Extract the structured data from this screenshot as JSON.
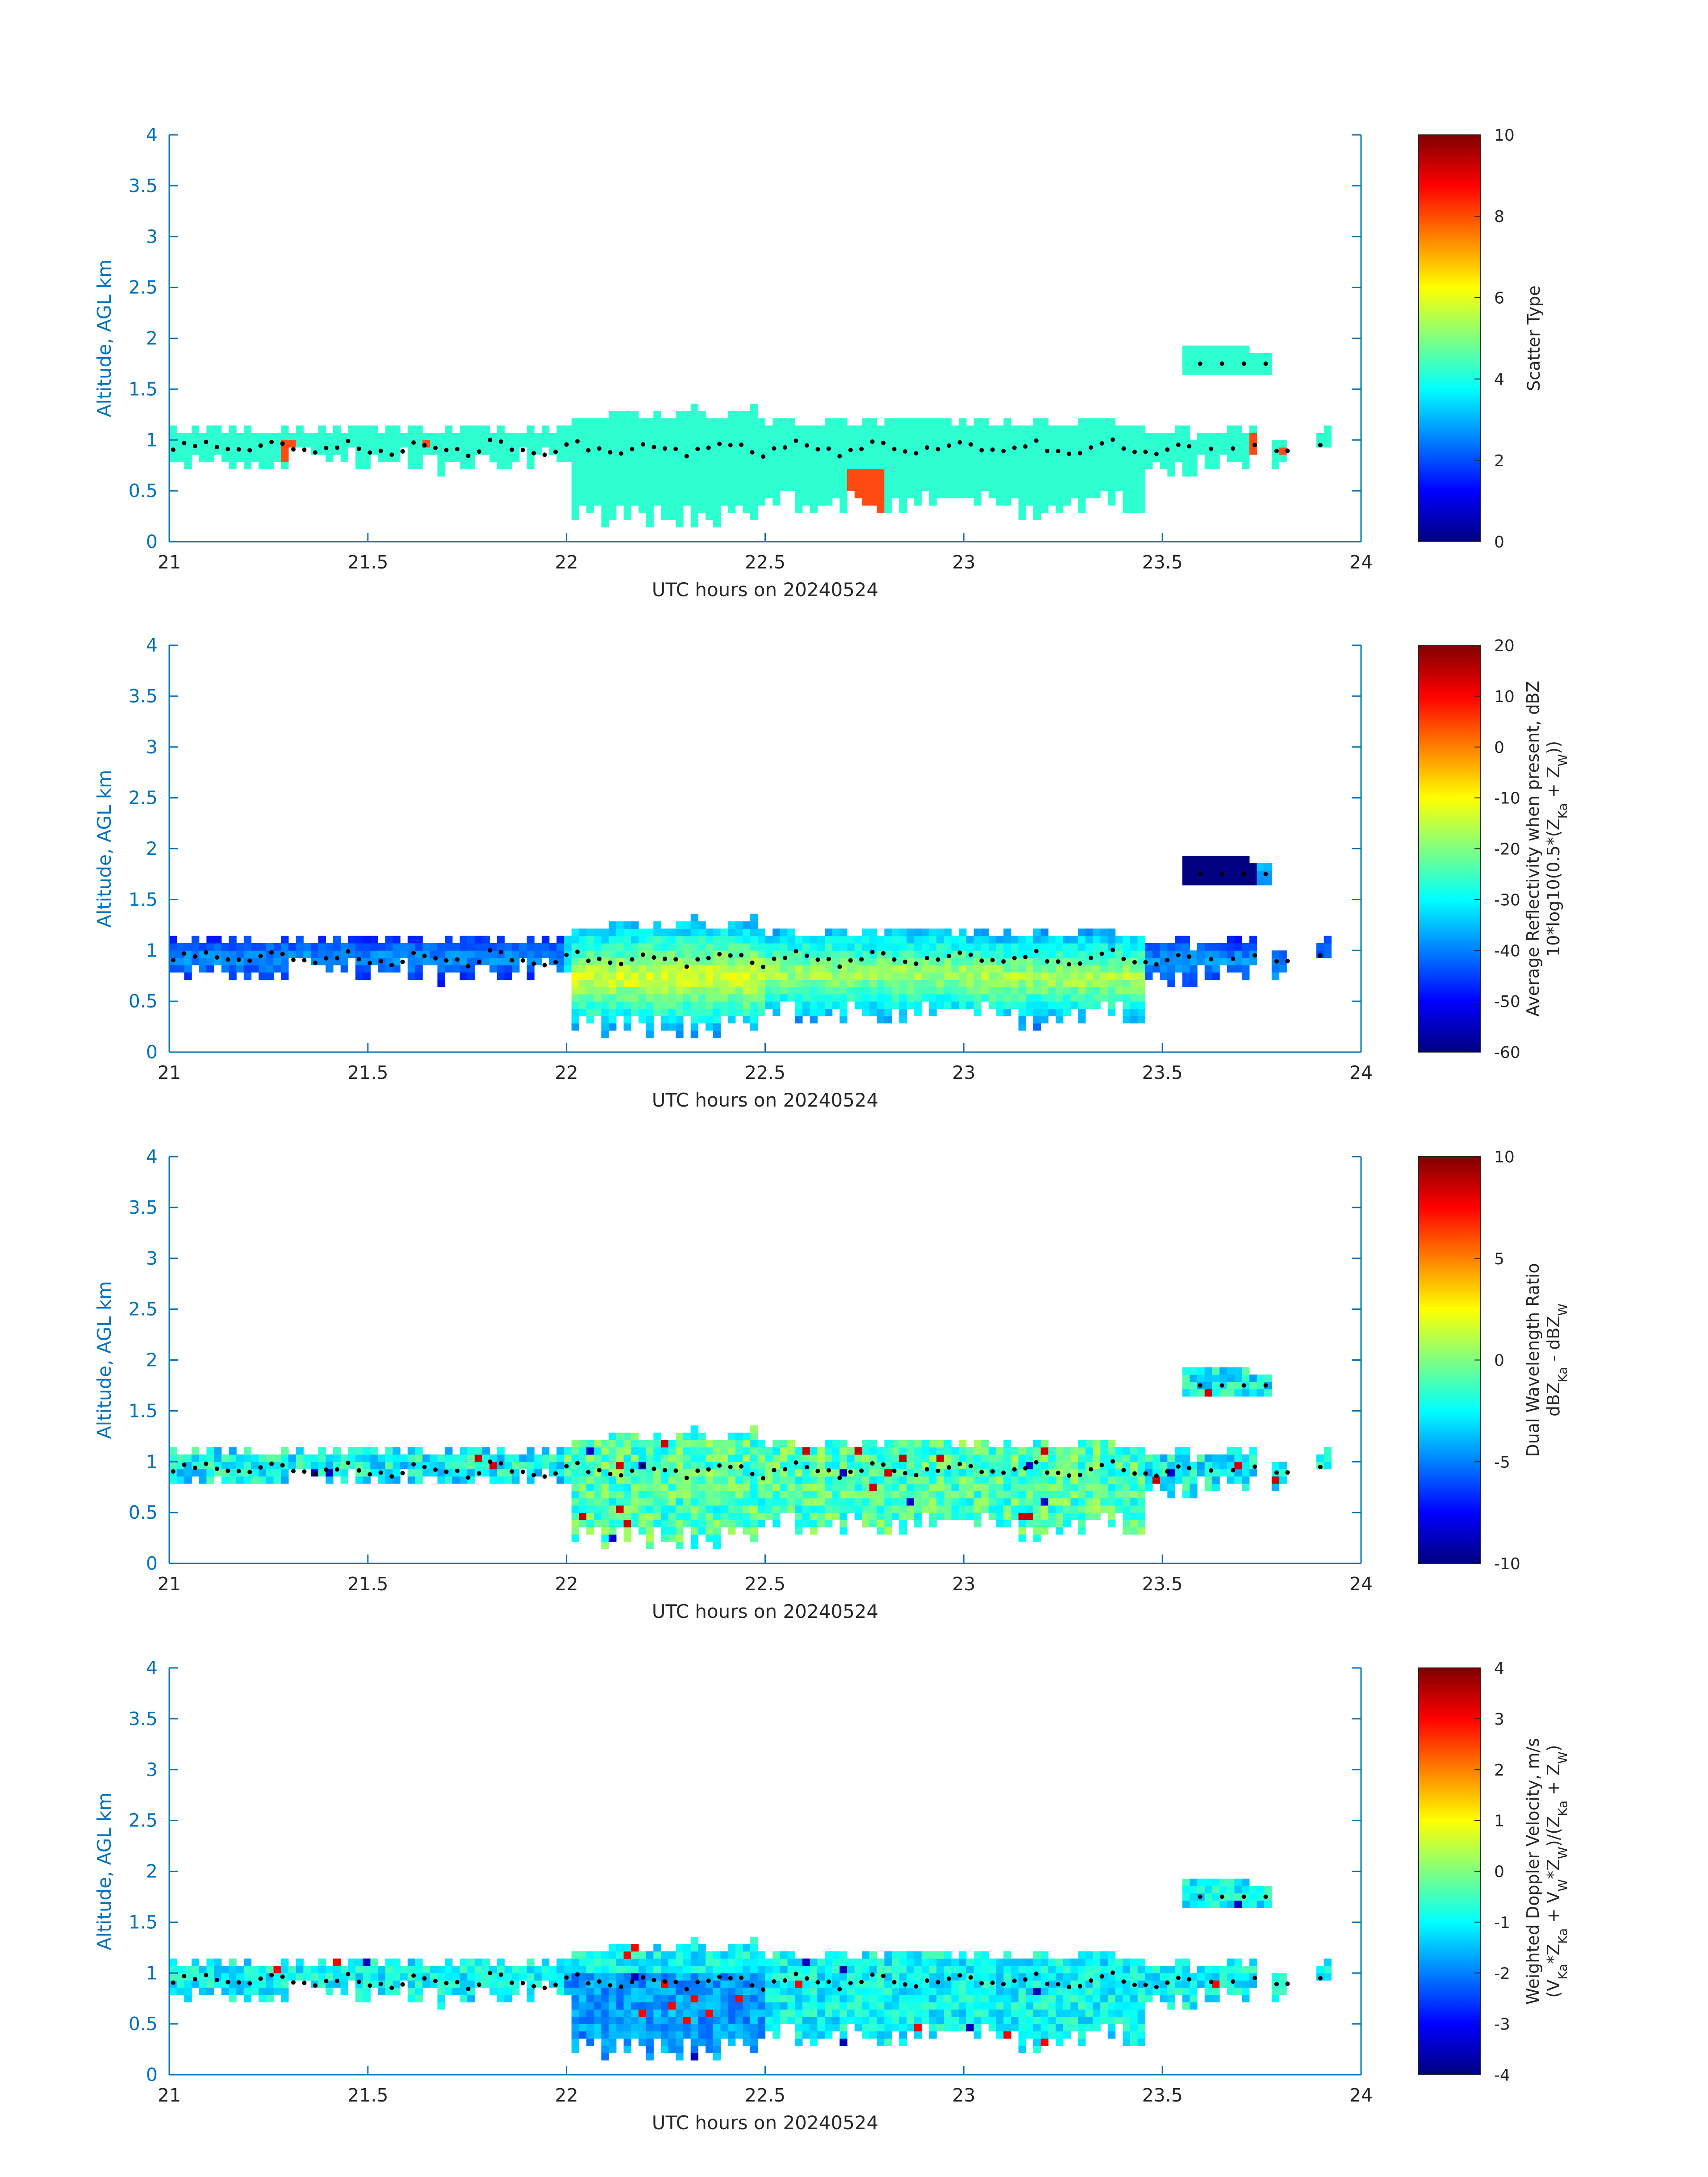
{
  "figure": {
    "background": "#ffffff",
    "axis_color": "#0072BD",
    "text_color": "#262626",
    "echo_colors": {
      "scatter_cloud": "#2EFFD0",
      "scatter_precip": "#FF4A14",
      "melting_layer_dots": "#000000"
    }
  },
  "chart_data": [
    {
      "type": "heatmap",
      "panel": 1,
      "xlabel": "UTC hours on 20240524",
      "ylabel": "Altitude, AGL km",
      "xlim": [
        21,
        24
      ],
      "ylim": [
        0,
        4
      ],
      "xticks": [
        "21",
        "21.5",
        "22",
        "22.5",
        "23",
        "23.5",
        "24"
      ],
      "yticks": [
        "0",
        "0.5",
        "1",
        "1.5",
        "2",
        "2.5",
        "3",
        "3.5",
        "4"
      ],
      "colorbar": {
        "colormap": "jet",
        "range": [
          0,
          10
        ],
        "ticks": [
          "0",
          "2",
          "4",
          "6",
          "8",
          "10"
        ],
        "label_lines": [
          "Scatter Type"
        ]
      },
      "variable": "scatter_type"
    },
    {
      "type": "heatmap",
      "panel": 2,
      "xlabel": "UTC hours on 20240524",
      "ylabel": "Altitude, AGL km",
      "xlim": [
        21,
        24
      ],
      "ylim": [
        0,
        4
      ],
      "xticks": [
        "21",
        "21.5",
        "22",
        "22.5",
        "23",
        "23.5",
        "24"
      ],
      "yticks": [
        "0",
        "0.5",
        "1",
        "1.5",
        "2",
        "2.5",
        "3",
        "3.5",
        "4"
      ],
      "colorbar": {
        "colormap": "jet",
        "range": [
          -60,
          20
        ],
        "ticks": [
          "-60",
          "-50",
          "-40",
          "-30",
          "-20",
          "-10",
          "0",
          "10",
          "20"
        ],
        "label_lines": [
          "Average Reflectivity when present, dBZ",
          "10*log10(0.5*(Z_Ka + Z_W))"
        ]
      },
      "variable": "reflectivity"
    },
    {
      "type": "heatmap",
      "panel": 3,
      "xlabel": "UTC hours on 20240524",
      "ylabel": "Altitude, AGL km",
      "xlim": [
        21,
        24
      ],
      "ylim": [
        0,
        4
      ],
      "xticks": [
        "21",
        "21.5",
        "22",
        "22.5",
        "23",
        "23.5",
        "24"
      ],
      "yticks": [
        "0",
        "0.5",
        "1",
        "1.5",
        "2",
        "2.5",
        "3",
        "3.5",
        "4"
      ],
      "colorbar": {
        "colormap": "jet",
        "range": [
          -10,
          10
        ],
        "ticks": [
          "-10",
          "-5",
          "0",
          "5",
          "10"
        ],
        "label_lines": [
          "Dual Wavelength Ratio",
          "dBZ_Ka - dBZ_W"
        ]
      },
      "variable": "dwr"
    },
    {
      "type": "heatmap",
      "panel": 4,
      "xlabel": "UTC hours on 20240524",
      "ylabel": "Altitude, AGL km",
      "xlim": [
        21,
        24
      ],
      "ylim": [
        0,
        4
      ],
      "xticks": [
        "21",
        "21.5",
        "22",
        "22.5",
        "23",
        "23.5",
        "24"
      ],
      "yticks": [
        "0",
        "0.5",
        "1",
        "1.5",
        "2",
        "2.5",
        "3",
        "3.5",
        "4"
      ],
      "colorbar": {
        "colormap": "jet",
        "range": [
          -4,
          4
        ],
        "ticks": [
          "-4",
          "-3",
          "-2",
          "-1",
          "0",
          "1",
          "2",
          "3",
          "4"
        ],
        "label_lines": [
          "Weighted Doppler Velocity, m/s",
          "(V_Ka*Z_Ka + V_W*Z_W)/(Z_Ka + Z_W)"
        ]
      },
      "variable": "doppler"
    }
  ],
  "echo_field": {
    "layer_segments": [
      {
        "t0": 21.0,
        "t1": 22.02,
        "base": 0.75,
        "top": 1.1
      },
      {
        "t0": 22.02,
        "t1": 22.2,
        "base": 0.22,
        "top": 1.25
      },
      {
        "t0": 22.2,
        "t1": 22.5,
        "base": 0.2,
        "top": 1.28
      },
      {
        "t0": 22.5,
        "t1": 23.0,
        "base": 0.35,
        "top": 1.2
      },
      {
        "t0": 23.0,
        "t1": 23.45,
        "base": 0.3,
        "top": 1.17
      },
      {
        "t0": 23.45,
        "t1": 23.73,
        "base": 0.7,
        "top": 1.08
      },
      {
        "t0": 23.78,
        "t1": 23.82,
        "base": 0.6,
        "top": 1.0
      },
      {
        "t0": 23.88,
        "t1": 23.92,
        "base": 0.95,
        "top": 1.1
      }
    ],
    "upper_layer": {
      "t0": 23.55,
      "t1": 23.78,
      "base": 1.67,
      "top": 1.95
    },
    "melting_layer_height_km": 0.98
  }
}
